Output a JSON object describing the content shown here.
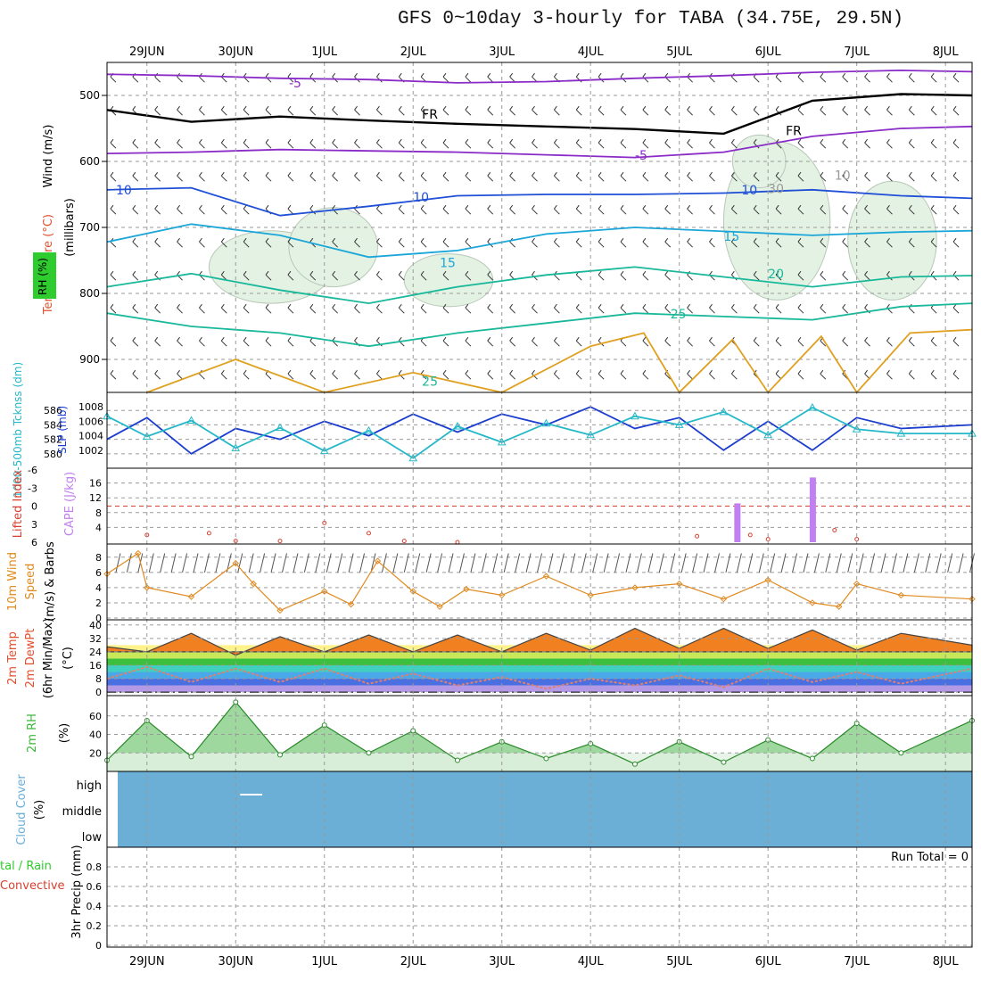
{
  "title": "GFS 0~10day 3-hourly for TABA (34.75E, 29.5N)",
  "colors": {
    "frame": "#000000",
    "grid": "#9a9a9a",
    "purple_temp": "#8a2bc8",
    "blue_temp": "#1f4fd6",
    "cyan_temp": "#1aa6d8",
    "teal_temp": "#18b89a",
    "orange_temp": "#e0a020",
    "rh_fill": "#e3f2e3",
    "slp": "#1a3ccf",
    "thickness": "#25b8c8",
    "lifted_index": "#d84030",
    "cape": "#c080f0",
    "wind10": "#e08a20",
    "cloud": "#6baed6",
    "rh2m": "#3cb83c"
  },
  "chart_data": [
    {
      "id": "upper_air",
      "type": "heatmap",
      "labels": {
        "wind": "Wind (m/s)",
        "temp": "Temperature (°C)",
        "rh": "RH (%)",
        "units": "(millibars)"
      },
      "y_ticks": [
        "500",
        "600",
        "700",
        "800",
        "900"
      ],
      "y_range": [
        950,
        450
      ],
      "x_categories": [
        "29JUN",
        "30JUN",
        "1JUL",
        "2JUL",
        "3JUL",
        "4JUL",
        "5JUL",
        "6JUL",
        "7JUL",
        "8JUL"
      ],
      "x_range_days": [
        -0.45,
        9.3
      ],
      "contour_labels": [
        "-5",
        "FR",
        "FR",
        "-5",
        "10",
        "10",
        "10",
        "15",
        "15",
        "20",
        "25",
        "25",
        "30",
        "10"
      ],
      "series": [
        {
          "name": "-5",
          "color_key": "purple_temp",
          "x": [
            -0.45,
            0.5,
            1.5,
            2.5,
            3.5,
            4.5,
            5.5,
            6.5,
            7.5,
            8.5,
            9.3
          ],
          "y": [
            468,
            470,
            474,
            476,
            481,
            479,
            474,
            470,
            465,
            462,
            464
          ]
        },
        {
          "name": "FR",
          "color_key": "frame",
          "x": [
            -0.45,
            0.5,
            1.5,
            2.5,
            3.5,
            4.5,
            5.5,
            6.5,
            7.5,
            8.5,
            9.3
          ],
          "y": [
            522,
            540,
            532,
            538,
            543,
            547,
            551,
            558,
            508,
            498,
            500
          ]
        },
        {
          "name": "-5",
          "color_key": "purple_temp",
          "x": [
            -0.45,
            0.5,
            1.5,
            2.5,
            3.5,
            4.5,
            5.5,
            6.5,
            7.5,
            8.5,
            9.3
          ],
          "y": [
            588,
            586,
            582,
            584,
            586,
            590,
            594,
            586,
            562,
            550,
            547
          ]
        },
        {
          "name": "10",
          "color_key": "blue_temp",
          "x": [
            -0.45,
            0.5,
            1.5,
            2.5,
            3.5,
            4.5,
            5.5,
            6.5,
            7.5,
            8.5,
            9.3
          ],
          "y": [
            643,
            640,
            682,
            668,
            652,
            650,
            650,
            648,
            643,
            652,
            656
          ]
        },
        {
          "name": "15",
          "color_key": "cyan_temp",
          "x": [
            -0.45,
            0.5,
            1.5,
            2.5,
            3.5,
            4.5,
            5.5,
            6.5,
            7.5,
            8.5,
            9.3
          ],
          "y": [
            722,
            695,
            712,
            745,
            735,
            710,
            700,
            706,
            712,
            707,
            705
          ]
        },
        {
          "name": "20",
          "color_key": "teal_temp",
          "x": [
            -0.45,
            0.5,
            1.5,
            2.5,
            3.5,
            4.5,
            5.5,
            6.5,
            7.5,
            8.5,
            9.3
          ],
          "y": [
            790,
            770,
            795,
            815,
            790,
            772,
            760,
            775,
            790,
            775,
            773
          ]
        },
        {
          "name": "25",
          "color_key": "teal_temp",
          "x": [
            -0.45,
            0.5,
            1.5,
            2.5,
            3.5,
            4.5,
            5.5,
            6.5,
            7.5,
            8.5,
            9.3
          ],
          "y": [
            830,
            850,
            860,
            880,
            860,
            845,
            830,
            835,
            840,
            820,
            815
          ]
        },
        {
          "name": "30",
          "color_key": "orange_temp",
          "x": [
            0.0,
            1.0,
            2.0,
            3.0,
            4.0,
            5.0,
            5.6,
            6.0,
            6.6,
            7.0,
            7.6,
            8.0,
            8.6,
            9.3
          ],
          "y": [
            950,
            900,
            950,
            920,
            950,
            880,
            860,
            950,
            870,
            950,
            865,
            950,
            860,
            855
          ]
        }
      ]
    },
    {
      "id": "thickness_slp",
      "type": "line",
      "labels": {
        "thickness": "1000-500mb Tcknss (dm)",
        "slp": "SLP (mb)"
      },
      "y_ticks_left": [
        "586",
        "584",
        "582",
        "580"
      ],
      "y_ticks_right": [
        "1008",
        "1006",
        "1004",
        "1002"
      ],
      "series": [
        {
          "name": "SLP",
          "axis": "right",
          "color_key": "slp",
          "x": [
            -0.45,
            0.0,
            0.5,
            1.0,
            1.5,
            2.0,
            2.5,
            3.0,
            3.5,
            4.0,
            4.5,
            5.0,
            5.5,
            6.0,
            6.5,
            7.0,
            7.5,
            8.0,
            8.5,
            9.3
          ],
          "y": [
            1003.5,
            1006.5,
            1001.5,
            1005.0,
            1003.5,
            1006.0,
            1004.0,
            1007.0,
            1004.5,
            1007.0,
            1005.5,
            1008.0,
            1005.0,
            1006.5,
            1002.0,
            1006.0,
            1002.0,
            1006.5,
            1005.0,
            1005.5
          ]
        },
        {
          "name": "Thickness",
          "axis": "left",
          "color_key": "thickness",
          "x": [
            -0.45,
            0.0,
            0.5,
            1.0,
            1.5,
            2.0,
            2.5,
            3.0,
            3.5,
            4.0,
            4.5,
            5.0,
            5.5,
            6.0,
            6.5,
            7.0,
            7.5,
            8.0,
            8.5,
            9.3
          ],
          "y": [
            585.2,
            582.4,
            584.6,
            580.8,
            583.6,
            580.4,
            583.2,
            579.4,
            583.8,
            581.6,
            584.2,
            582.6,
            585.2,
            584.0,
            585.8,
            582.6,
            586.4,
            583.4,
            582.8,
            582.8
          ]
        }
      ]
    },
    {
      "id": "cape_li",
      "type": "bar",
      "labels": {
        "li": "Lifted Index",
        "cape": "CAPE (J/kg)"
      },
      "y_ticks_left": [
        "-6",
        "-3",
        "0",
        "3",
        "6"
      ],
      "y_ticks_right": [
        "16",
        "12",
        "8",
        "4"
      ],
      "series": [
        {
          "name": "CAPE",
          "color_key": "cape",
          "x": [
            6.65,
            7.5
          ],
          "y": [
            10.5,
            17.5
          ]
        },
        {
          "name": "Lifted Index",
          "color_key": "lifted_index",
          "x": [
            0.0,
            0.7,
            1.0,
            1.5,
            2.0,
            2.5,
            2.9,
            3.5,
            6.2,
            6.8,
            7.0,
            7.75,
            8.0
          ],
          "y": [
            4.8,
            4.5,
            5.8,
            5.8,
            2.8,
            4.5,
            5.8,
            6.0,
            5.0,
            4.8,
            5.5,
            4.0,
            5.5
          ]
        }
      ]
    },
    {
      "id": "wind10m",
      "type": "line",
      "labels": {
        "wind": "10m Wind",
        "speed": "Speed",
        "barbs": "(m/s) & Barbs"
      },
      "y_ticks": [
        "8",
        "6",
        "4",
        "2",
        "0"
      ],
      "series": [
        {
          "name": "Wind Speed",
          "color_key": "wind10",
          "x": [
            -0.45,
            -0.1,
            0.0,
            0.5,
            1.0,
            1.2,
            1.5,
            2.0,
            2.3,
            2.6,
            3.0,
            3.3,
            3.6,
            4.0,
            4.5,
            5.0,
            5.5,
            6.0,
            6.5,
            7.0,
            7.5,
            7.8,
            8.0,
            8.5,
            9.3
          ],
          "y": [
            5.8,
            8.5,
            4.0,
            2.8,
            7.2,
            4.5,
            1.0,
            3.5,
            1.8,
            7.5,
            3.5,
            1.5,
            3.8,
            3.0,
            5.5,
            3.0,
            4.0,
            4.5,
            2.5,
            5.0,
            2.0,
            1.5,
            4.5,
            3.0,
            2.5
          ]
        }
      ]
    },
    {
      "id": "temp2m",
      "type": "area",
      "labels": {
        "temp": "2m Temp",
        "dewpt": "2m DewPt",
        "minmax": "(6hr Min/Max)",
        "units": "(°C)"
      },
      "y_ticks": [
        "40",
        "32",
        "24",
        "16",
        "8",
        "0"
      ],
      "series": [
        {
          "name": "2m Temp",
          "color_key": "orange_temp",
          "x": [
            -0.45,
            0.0,
            0.5,
            1.0,
            1.5,
            2.0,
            2.5,
            3.0,
            3.5,
            4.0,
            4.5,
            5.0,
            5.5,
            6.0,
            6.5,
            7.0,
            7.5,
            8.0,
            8.5,
            9.3
          ],
          "y": [
            27,
            24,
            35,
            22,
            33,
            24,
            34,
            24,
            34,
            24,
            35,
            25,
            38,
            26,
            38,
            26,
            37,
            25,
            35,
            28
          ]
        },
        {
          "name": "2m DewPt",
          "color_key": "frame",
          "x": [
            -0.45,
            0.0,
            0.5,
            1.0,
            1.5,
            2.0,
            2.5,
            3.0,
            3.5,
            4.0,
            4.5,
            5.0,
            5.5,
            6.0,
            6.5,
            7.0,
            7.5,
            8.0,
            8.5,
            9.3
          ],
          "y": [
            8,
            15,
            6,
            14,
            6,
            14,
            5,
            11,
            4,
            9,
            2,
            8,
            4,
            10,
            3,
            14,
            6,
            12,
            5,
            14
          ]
        }
      ]
    },
    {
      "id": "rh2m",
      "type": "area",
      "labels": {
        "rh": "2m RH",
        "units": "(%)"
      },
      "y_ticks": [
        "60",
        "40",
        "20"
      ],
      "series": [
        {
          "name": "2m RH",
          "color_key": "rh2m",
          "x": [
            -0.45,
            0.0,
            0.5,
            1.0,
            1.5,
            2.0,
            2.5,
            3.0,
            3.5,
            4.0,
            4.5,
            5.0,
            5.5,
            6.0,
            6.5,
            7.0,
            7.5,
            8.0,
            8.5,
            9.3
          ],
          "y": [
            12,
            55,
            16,
            75,
            18,
            50,
            20,
            44,
            12,
            32,
            14,
            30,
            8,
            32,
            10,
            34,
            14,
            52,
            20,
            55
          ]
        }
      ]
    },
    {
      "id": "cloud",
      "type": "heatmap",
      "labels": {
        "cloud": "Cloud Cover",
        "units": "(%)"
      },
      "y_ticks": [
        "high",
        "middle",
        "low"
      ]
    },
    {
      "id": "precip",
      "type": "bar",
      "labels": {
        "total": "tal / Rain",
        "convective": "Convective",
        "precip": "3hr Precip (mm)",
        "run_total": "Run Total = 0"
      },
      "y_ticks": [
        "0.8",
        "0.6",
        "0.4",
        "0.2",
        "0"
      ],
      "series": []
    }
  ]
}
